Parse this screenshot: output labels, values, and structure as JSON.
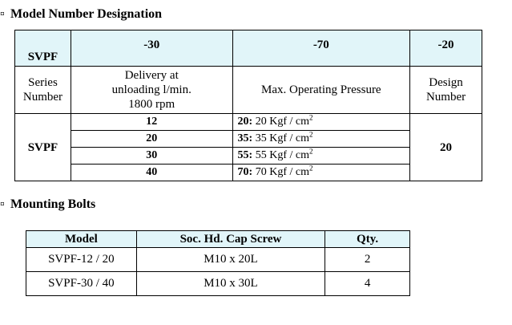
{
  "section1": {
    "bullet": "▫",
    "title": "Model Number Designation",
    "header": {
      "c1": "SVPF",
      "c2": "-30",
      "c3": "-70",
      "c4": "-20"
    },
    "desc": {
      "c1": [
        "Series",
        "Number"
      ],
      "c2": [
        "Delivery at",
        "unloading l/min.",
        "1800 rpm"
      ],
      "c3": "Max. Operating Pressure",
      "c4": [
        "Design",
        "Number"
      ]
    },
    "model": "SVPF",
    "deliveries": [
      "12",
      "20",
      "30",
      "40"
    ],
    "pressures": [
      {
        "code": "20:",
        "value": "20 Kgf / cm",
        "sup": "2"
      },
      {
        "code": "35:",
        "value": "35 Kgf / cm",
        "sup": "2"
      },
      {
        "code": "55:",
        "value": "55 Kgf / cm",
        "sup": "2"
      },
      {
        "code": "70:",
        "value": "70 Kgf / cm",
        "sup": "2"
      }
    ],
    "design": "20"
  },
  "section2": {
    "bullet": "▫",
    "title": "Mounting Bolts",
    "columns": [
      "Model",
      "Soc. Hd. Cap Screw",
      "Qty."
    ],
    "rows": [
      [
        "SVPF-12 / 20",
        "M10 x 20L",
        "2"
      ],
      [
        "SVPF-30 / 40",
        "M10 x 30L",
        "4"
      ]
    ]
  },
  "colors": {
    "header_bg": "#e1f5f9",
    "border": "#000000"
  }
}
